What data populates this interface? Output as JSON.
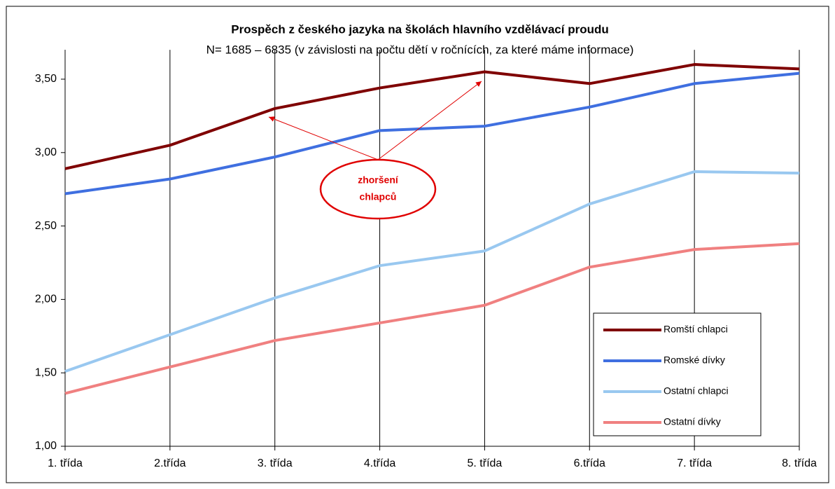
{
  "chart_data": {
    "type": "line",
    "title": "Prospěch z českého jazyka na školách hlavního vzdělávací proudu",
    "subtitle": "N= 1685 – 6835 (v závislosti na počtu dětí v ročnících, za které máme informace)",
    "categories": [
      "1. třída",
      "2.třída",
      "3. třída",
      "4.třída",
      "5. třída",
      "6.třída",
      "7. třída",
      "8. třída"
    ],
    "series": [
      {
        "name": "Romští chlapci",
        "color": "#7f0000",
        "values": [
          2.89,
          3.05,
          3.3,
          3.44,
          3.55,
          3.47,
          3.6,
          3.57
        ]
      },
      {
        "name": "Romské dívky",
        "color": "#3f6fe0",
        "values": [
          2.72,
          2.82,
          2.97,
          3.15,
          3.18,
          3.31,
          3.47,
          3.54
        ]
      },
      {
        "name": "Ostatní chlapci",
        "color": "#99c8f0",
        "values": [
          1.51,
          1.76,
          2.01,
          2.23,
          2.33,
          2.65,
          2.87,
          2.86
        ]
      },
      {
        "name": "Ostatní dívky",
        "color": "#f08080",
        "values": [
          1.36,
          1.54,
          1.72,
          1.84,
          1.96,
          2.22,
          2.34,
          2.38
        ]
      }
    ],
    "ylim": [
      1,
      3.7
    ],
    "yticks": [
      {
        "value": 1,
        "label": "1,00"
      },
      {
        "value": 1.5,
        "label": "1,50"
      },
      {
        "value": 2,
        "label": "2,00"
      },
      {
        "value": 2.5,
        "label": "2,50"
      },
      {
        "value": 3,
        "label": "3,00"
      },
      {
        "value": 3.5,
        "label": "3,50"
      }
    ],
    "grid": true,
    "legend": "lower right",
    "annotation": [
      "zhoršení",
      "chlapců"
    ]
  }
}
